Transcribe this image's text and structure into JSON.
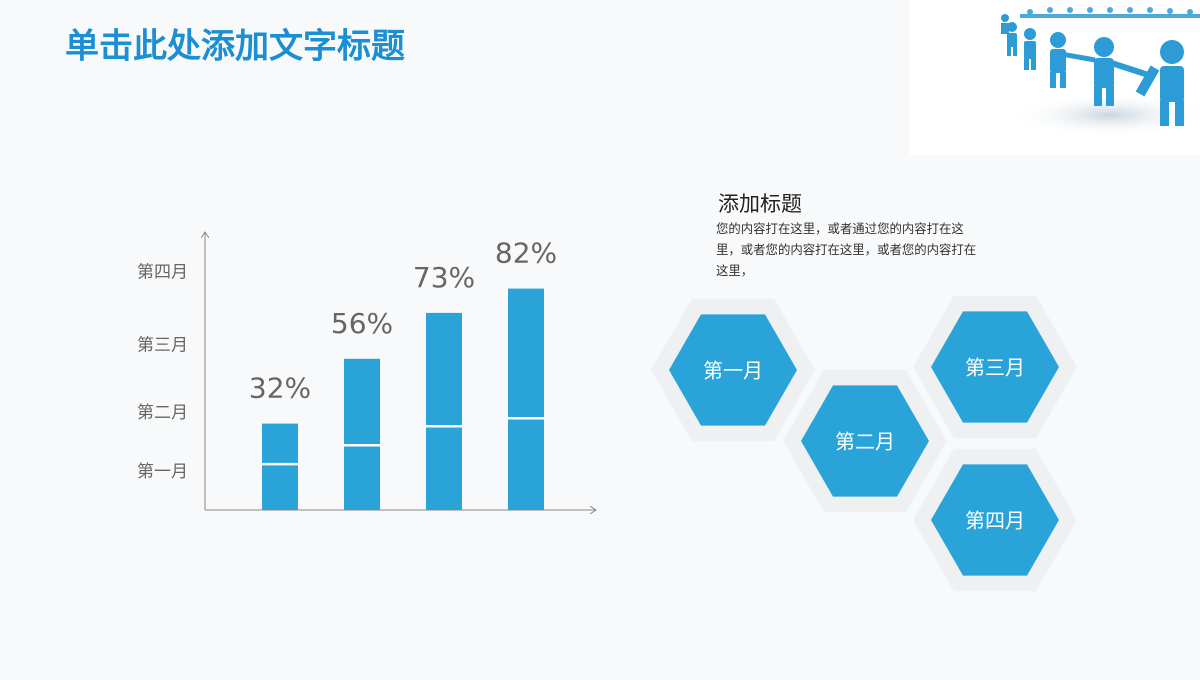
{
  "header": {
    "title": "单击此处添加文字标题"
  },
  "chart_data": {
    "type": "bar",
    "values": [
      32,
      56,
      73,
      82
    ],
    "value_labels": [
      "32%",
      "56%",
      "73%",
      "82%"
    ],
    "dividers": [
      17,
      24,
      31,
      34
    ],
    "color": "#29a3d8",
    "ylim": [
      0,
      100
    ],
    "yticks": [
      {
        "value": 14,
        "label": "第一月"
      },
      {
        "value": 36,
        "label": "第二月"
      },
      {
        "value": 61,
        "label": "第三月"
      },
      {
        "value": 88,
        "label": "第四月"
      }
    ]
  },
  "panel": {
    "title": "添加标题",
    "text": "您的内容打在这里，或者通过您的内容打在这里，或者您的内容打在这里，或者您的内容打在这里，"
  },
  "hexagons": [
    "第一月",
    "第二月",
    "第三月",
    "第四月"
  ]
}
